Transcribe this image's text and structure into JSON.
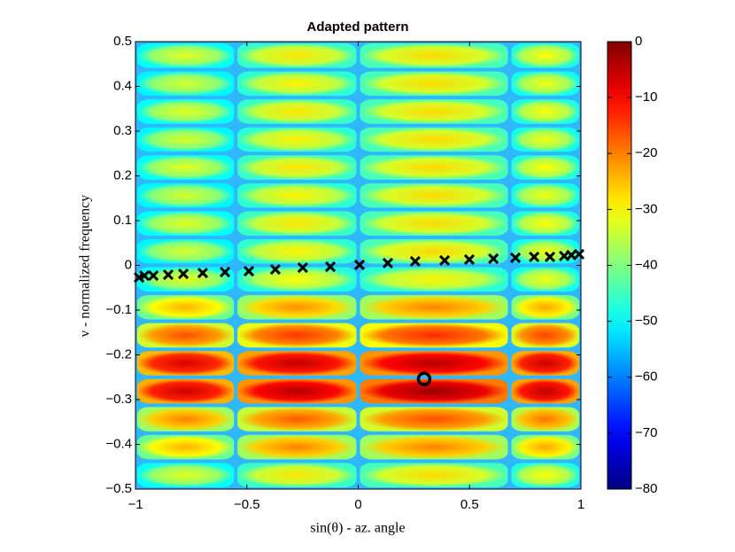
{
  "chart_data": {
    "type": "heatmap",
    "title": "Adapted pattern",
    "x_label": "sin(θ) - az. angle",
    "y_label": "ν - normalized frequency",
    "x_edges": [
      -1,
      -0.55,
      0,
      0.68,
      1
    ],
    "y_edges": [
      -0.5,
      -0.4375,
      -0.375,
      -0.3125,
      -0.25,
      -0.1875,
      -0.125,
      -0.0625,
      0,
      0.0625,
      0.125,
      0.1875,
      0.25,
      0.3125,
      0.375,
      0.4375,
      0.5
    ],
    "z": [
      [
        -32,
        -28,
        -27,
        -30
      ],
      [
        -24,
        -20,
        -20,
        -23
      ],
      [
        -20,
        -17,
        -16,
        -19
      ],
      [
        -6,
        -4,
        -2,
        -5
      ],
      [
        -7,
        -5,
        -4,
        -6
      ],
      [
        -16,
        -14,
        -13,
        -15
      ],
      [
        -24,
        -21,
        -20,
        -23
      ],
      [
        -32,
        -30,
        -29,
        -31
      ],
      [
        -33,
        -29,
        -27,
        -31
      ],
      [
        -32,
        -28,
        -27,
        -30
      ],
      [
        -33,
        -29,
        -27,
        -31
      ],
      [
        -32,
        -28,
        -27,
        -30
      ],
      [
        -33,
        -29,
        -27,
        -31
      ],
      [
        -32,
        -28,
        -27,
        -30
      ],
      [
        -33,
        -29,
        -27,
        -31
      ],
      [
        -32,
        -28,
        -27,
        -30
      ]
    ],
    "clim": [
      -80,
      0
    ],
    "xlim": [
      -1,
      1
    ],
    "ylim": [
      -0.5,
      0.5
    ],
    "xticks": [
      {
        "value": -1,
        "label": "−1"
      },
      {
        "value": -0.5,
        "label": "−0.5"
      },
      0,
      0.5,
      1
    ],
    "yticks": [
      {
        "value": -0.5,
        "label": "−0.5"
      },
      {
        "value": -0.4,
        "label": "−0.4"
      },
      {
        "value": -0.3,
        "label": "−0.3"
      },
      {
        "value": -0.2,
        "label": "−0.2"
      },
      {
        "value": -0.1,
        "label": "−0.1"
      },
      0,
      0.1,
      0.2,
      0.3,
      0.4,
      0.5
    ],
    "cticks": [
      {
        "value": -80,
        "label": "−80"
      },
      {
        "value": -70,
        "label": "−70"
      },
      {
        "value": -60,
        "label": "−60"
      },
      {
        "value": -50,
        "label": "−50"
      },
      {
        "value": -40,
        "label": "−40"
      },
      {
        "value": -30,
        "label": "−30"
      },
      {
        "value": -20,
        "label": "−20"
      },
      {
        "value": -10,
        "label": "−10"
      },
      0
    ],
    "overlays": [
      {
        "type": "scatter",
        "marker": "x",
        "color": "#000000",
        "x": [
          -0.984,
          -0.96,
          -0.92,
          -0.853,
          -0.785,
          -0.698,
          -0.598,
          -0.491,
          -0.372,
          -0.249,
          -0.125,
          0.006,
          0.133,
          0.256,
          0.388,
          0.499,
          0.607,
          0.706,
          0.79,
          0.861,
          0.925,
          0.957,
          0.992
        ],
        "y": [
          -0.027,
          -0.023,
          -0.023,
          -0.021,
          -0.019,
          -0.017,
          -0.015,
          -0.013,
          -0.009,
          -0.005,
          -0.003,
          0.001,
          0.005,
          0.009,
          0.011,
          0.013,
          0.015,
          0.017,
          0.019,
          0.019,
          0.021,
          0.023,
          0.025
        ]
      },
      {
        "type": "scatter",
        "marker": "o",
        "color": "#000000",
        "x": [
          0.296
        ],
        "y": [
          -0.254
        ]
      }
    ]
  }
}
